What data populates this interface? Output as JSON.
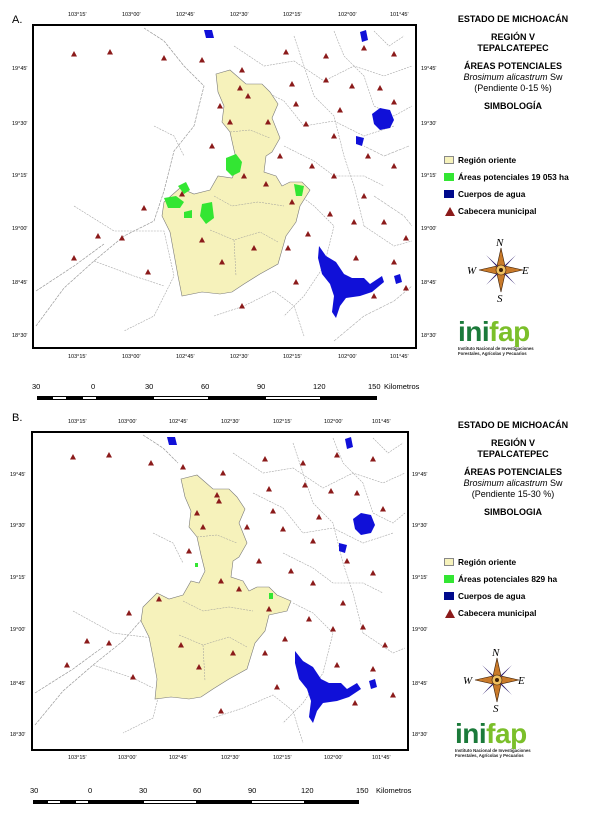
{
  "panels": [
    {
      "label": "A.",
      "title_lines": [
        "ESTADO DE MICHOACÁN",
        "REGIÓN V",
        "TEPALCATEPEC"
      ],
      "areas_title": "ÁREAS POTENCIALES",
      "species": "Brosimum alicastrum",
      "species_author": "Sw",
      "slope": "(Pendiente 0-15 %)",
      "simbologia": "SIMBOLOGÍA",
      "legend": [
        {
          "label": "Región oriente",
          "color": "#f6f2bb"
        },
        {
          "label": "Áreas potenciales 19 053 ha",
          "color": "#33e633"
        },
        {
          "label": "Cuerpos de agua",
          "color": "#000a8c"
        },
        {
          "label": "Cabecera municipal",
          "color": "#8b1a1a"
        }
      ],
      "top_ticks": [
        "103°15'",
        "103°00'",
        "102°45'",
        "102°30'",
        "102°15'",
        "102°00'",
        "101°45'"
      ],
      "bottom_ticks": [
        "103°15'",
        "103°00'",
        "102°45'",
        "102°30'",
        "102°15'",
        "102°00'",
        "101°45'"
      ],
      "left_ticks": [
        "19°45'",
        "19°30'",
        "19°15'",
        "19°00'",
        "18°45'",
        "18°30'"
      ],
      "right_ticks": [
        "19°45'",
        "19°30'",
        "19°15'",
        "19°00'",
        "18°45'",
        "18°30'"
      ],
      "scale_labels": [
        "30",
        "0",
        "30",
        "60",
        "90",
        "120",
        "150"
      ],
      "scale_unit": "Kilometros"
    },
    {
      "label": "B.",
      "title_lines": [
        "ESTADO DE MICHOACÁN",
        "REGIÓN V",
        "TEPALCATEPEC"
      ],
      "areas_title": "ÁREAS POTENCIALES",
      "species": "Brosimum alicastrum",
      "species_author": "Sw",
      "slope": "(Pendiente 15-30 %)",
      "simbologia": "SIMBOLOGIA",
      "legend": [
        {
          "label": "Región oriente",
          "color": "#f6f2bb"
        },
        {
          "label": "Áreas potenciales 829 ha",
          "color": "#33e633"
        },
        {
          "label": "Cuerpos de agua",
          "color": "#000a8c"
        },
        {
          "label": "Cabecera municipal",
          "color": "#8b1a1a"
        }
      ],
      "top_ticks": [
        "103°15'",
        "103°00'",
        "102°45'",
        "102°30'",
        "102°15'",
        "102°00'",
        "101°45'"
      ],
      "bottom_ticks": [
        "103°15'",
        "103°00'",
        "102°45'",
        "102°30'",
        "102°15'",
        "102°00'",
        "101°45'"
      ],
      "left_ticks": [
        "19°45'",
        "19°30'",
        "19°15'",
        "19°00'",
        "18°45'",
        "18°30'"
      ],
      "right_ticks": [
        "19°45'",
        "19°30'",
        "19°15'",
        "19°00'",
        "18°45'",
        "18°30'"
      ],
      "scale_labels": [
        "30",
        "0",
        "30",
        "60",
        "90",
        "120",
        "150"
      ],
      "scale_unit": "Kilometros"
    }
  ],
  "compass": {
    "n": "N",
    "s": "S",
    "e": "E",
    "w": "W"
  },
  "logo": {
    "word": "inifap",
    "sub1": "Instituto Nacional de Investigaciones",
    "sub2": "Forestales, Agrícolas y Pecuarios"
  }
}
